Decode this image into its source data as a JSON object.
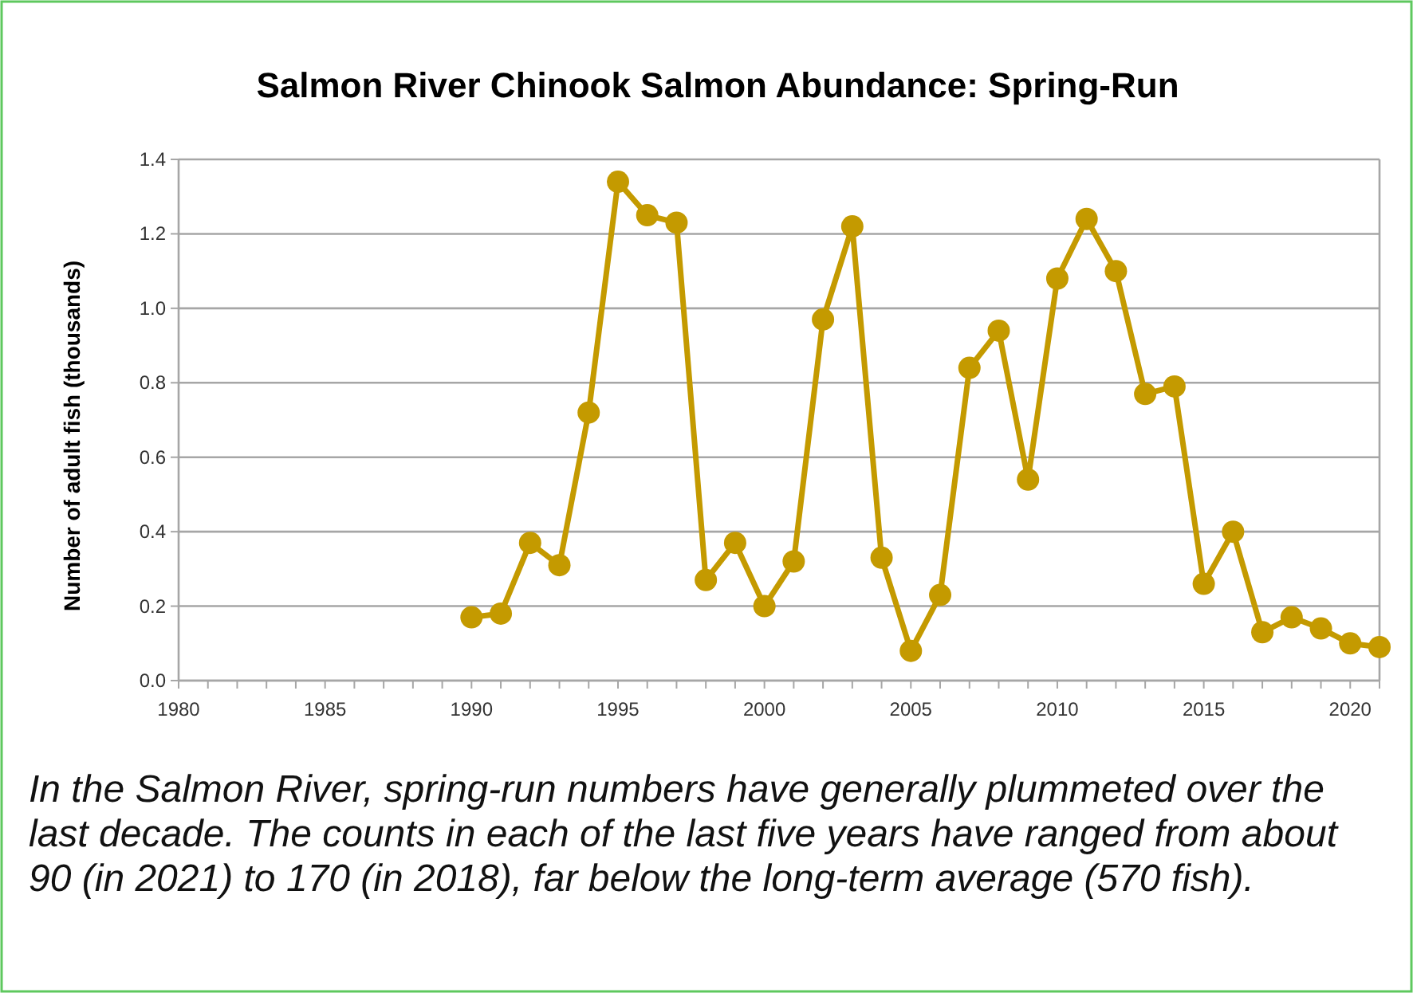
{
  "chart_data": {
    "type": "line",
    "title": "Salmon River Chinook Salmon Abundance: Spring-Run",
    "ylabel": "Number of adult fish (thousands)",
    "x": [
      1990,
      1991,
      1992,
      1993,
      1994,
      1995,
      1996,
      1997,
      1998,
      1999,
      2000,
      2001,
      2002,
      2003,
      2004,
      2005,
      2006,
      2007,
      2008,
      2009,
      2010,
      2011,
      2012,
      2013,
      2014,
      2015,
      2016,
      2017,
      2018,
      2019,
      2020,
      2021
    ],
    "series": [
      {
        "color": "#c49a00",
        "values": [
          0.17,
          0.18,
          0.37,
          0.31,
          0.72,
          1.34,
          1.25,
          1.23,
          0.27,
          0.37,
          0.2,
          0.32,
          0.97,
          1.22,
          0.33,
          0.08,
          0.23,
          0.84,
          0.94,
          0.54,
          1.08,
          1.24,
          1.1,
          0.77,
          0.79,
          0.26,
          0.4,
          0.13,
          0.17,
          0.14,
          0.1,
          0.09
        ]
      }
    ],
    "xlim": [
      1980,
      2021
    ],
    "xticks": [
      1980,
      {
        "value": 1981,
        "label": null
      },
      {
        "value": 1982,
        "label": null
      },
      {
        "value": 1983,
        "label": null
      },
      {
        "value": 1984,
        "label": null
      },
      1985,
      {
        "value": 1986,
        "label": null
      },
      {
        "value": 1987,
        "label": null
      },
      {
        "value": 1988,
        "label": null
      },
      {
        "value": 1989,
        "label": null
      },
      1990,
      {
        "value": 1991,
        "label": null
      },
      {
        "value": 1992,
        "label": null
      },
      {
        "value": 1993,
        "label": null
      },
      {
        "value": 1994,
        "label": null
      },
      1995,
      {
        "value": 1996,
        "label": null
      },
      {
        "value": 1997,
        "label": null
      },
      {
        "value": 1998,
        "label": null
      },
      {
        "value": 1999,
        "label": null
      },
      2000,
      {
        "value": 2001,
        "label": null
      },
      {
        "value": 2002,
        "label": null
      },
      {
        "value": 2003,
        "label": null
      },
      {
        "value": 2004,
        "label": null
      },
      2005,
      {
        "value": 2006,
        "label": null
      },
      {
        "value": 2007,
        "label": null
      },
      {
        "value": 2008,
        "label": null
      },
      {
        "value": 2009,
        "label": null
      },
      2010,
      {
        "value": 2011,
        "label": null
      },
      {
        "value": 2012,
        "label": null
      },
      {
        "value": 2013,
        "label": null
      },
      {
        "value": 2014,
        "label": null
      },
      2015,
      {
        "value": 2016,
        "label": null
      },
      {
        "value": 2017,
        "label": null
      },
      {
        "value": 2018,
        "label": null
      },
      {
        "value": 2019,
        "label": null
      },
      2020,
      {
        "value": 2021,
        "label": null
      }
    ],
    "ylim": [
      0,
      1.4
    ],
    "yticks": [
      {
        "value": 0,
        "label": "0.0"
      },
      0.2,
      0.4,
      0.6,
      0.8,
      {
        "value": 1,
        "label": "1.0"
      },
      1.2,
      1.4
    ],
    "grid": "y",
    "marker": "circle",
    "line_style": "solid",
    "annotations": [
      "In the Salmon River, spring-run numbers have generally plummeted over the last decade. The counts in each of the last five years have ranged from about 90 (in 2021) to 170 (in 2018), far below the long-term average (570 fish)."
    ]
  }
}
